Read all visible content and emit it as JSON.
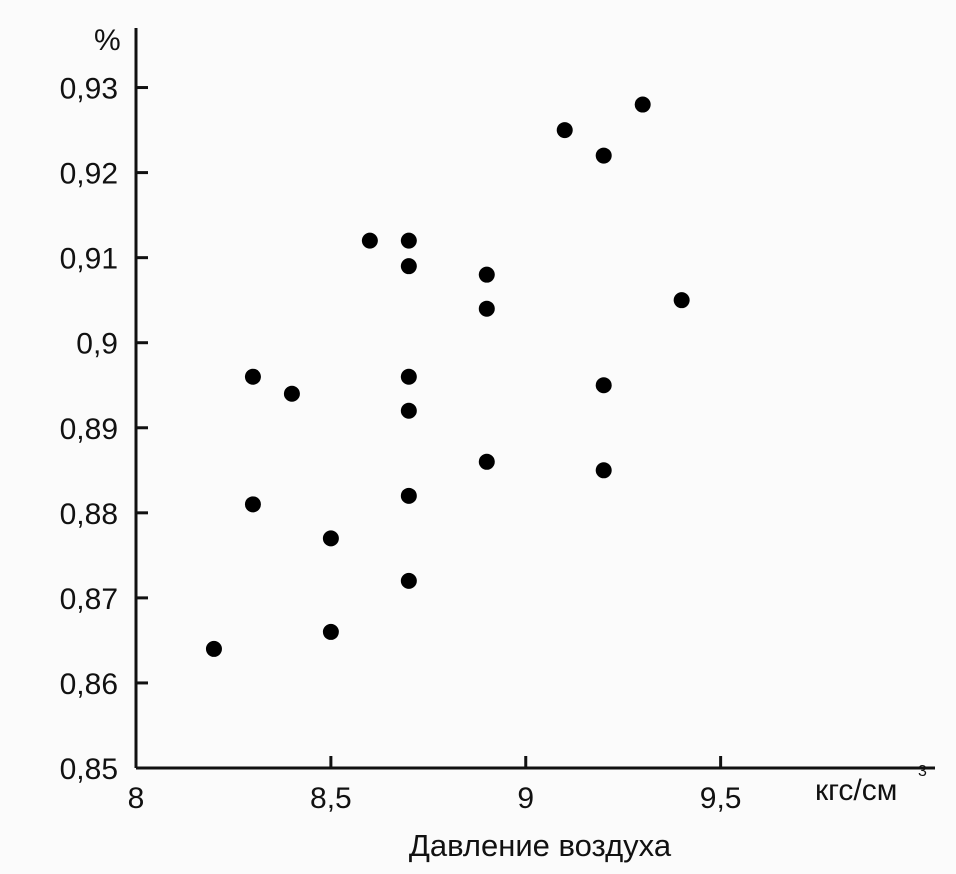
{
  "chart_data": {
    "type": "scatter",
    "y_unit": "%",
    "x_unit": "кгс/см",
    "x_unit_sup": "3",
    "xlabel": "Давление воздуха",
    "x_ticks": [
      {
        "value": 8,
        "label": "8"
      },
      {
        "value": 8.5,
        "label": "8,5"
      },
      {
        "value": 9,
        "label": "9"
      },
      {
        "value": 9.5,
        "label": "9,5"
      }
    ],
    "y_ticks": [
      {
        "value": 0.85,
        "label": "0,85"
      },
      {
        "value": 0.86,
        "label": "0,86"
      },
      {
        "value": 0.87,
        "label": "0,87"
      },
      {
        "value": 0.88,
        "label": "0,88"
      },
      {
        "value": 0.89,
        "label": "0,89"
      },
      {
        "value": 0.9,
        "label": "0,9"
      },
      {
        "value": 0.91,
        "label": "0,91"
      },
      {
        "value": 0.92,
        "label": "0,92"
      },
      {
        "value": 0.93,
        "label": "0,93"
      }
    ],
    "xlim": [
      8,
      10.05
    ],
    "ylim": [
      0.85,
      0.937
    ],
    "grid": false,
    "points": [
      {
        "x": 8.2,
        "y": 0.864
      },
      {
        "x": 8.3,
        "y": 0.896
      },
      {
        "x": 8.3,
        "y": 0.881
      },
      {
        "x": 8.4,
        "y": 0.894
      },
      {
        "x": 8.5,
        "y": 0.877
      },
      {
        "x": 8.5,
        "y": 0.866
      },
      {
        "x": 8.6,
        "y": 0.912
      },
      {
        "x": 8.7,
        "y": 0.912
      },
      {
        "x": 8.7,
        "y": 0.909
      },
      {
        "x": 8.7,
        "y": 0.896
      },
      {
        "x": 8.7,
        "y": 0.892
      },
      {
        "x": 8.7,
        "y": 0.882
      },
      {
        "x": 8.7,
        "y": 0.872
      },
      {
        "x": 8.9,
        "y": 0.908
      },
      {
        "x": 8.9,
        "y": 0.904
      },
      {
        "x": 8.9,
        "y": 0.886
      },
      {
        "x": 9.1,
        "y": 0.925
      },
      {
        "x": 9.2,
        "y": 0.922
      },
      {
        "x": 9.2,
        "y": 0.895
      },
      {
        "x": 9.2,
        "y": 0.885
      },
      {
        "x": 9.3,
        "y": 0.928
      },
      {
        "x": 9.4,
        "y": 0.905
      }
    ]
  }
}
